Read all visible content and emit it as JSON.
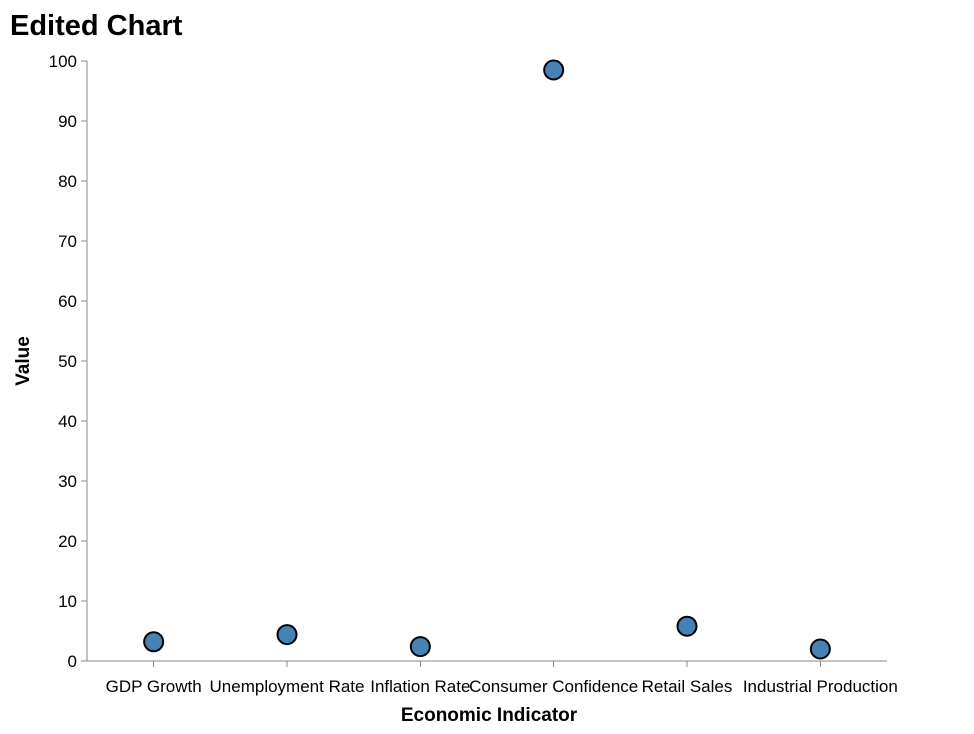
{
  "chart_data": {
    "type": "scatter",
    "title": "Edited Chart",
    "xlabel": "Economic Indicator",
    "ylabel": "Value",
    "categories": [
      "GDP Growth",
      "Unemployment Rate",
      "Inflation Rate",
      "Consumer Confidence",
      "Retail Sales",
      "Industrial Production"
    ],
    "values": [
      3.2,
      4.4,
      2.4,
      98.5,
      5.8,
      2.0
    ],
    "ylim": [
      0,
      100
    ],
    "yticks": [
      0,
      10,
      20,
      30,
      40,
      50,
      60,
      70,
      80,
      90,
      100
    ],
    "grid": false,
    "legend": "none",
    "colors": {
      "point_fill": "#4682b4",
      "point_stroke": "#000000",
      "axis": "#888888"
    }
  }
}
